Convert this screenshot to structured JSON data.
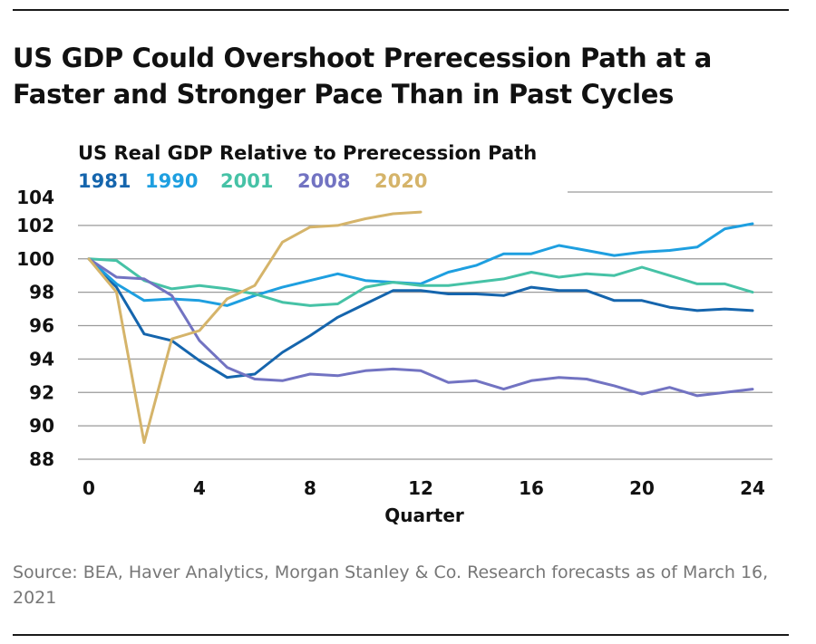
{
  "headline": {
    "line1": "US GDP Could Overshoot Prerecession Path at a",
    "line2": "Faster and Stronger Pace Than in Past Cycles"
  },
  "source": "Source: BEA, Haver Analytics, Morgan Stanley & Co. Research forecasts as of March 16, 2021",
  "chart_data": {
    "type": "line",
    "title": "US Real GDP Relative to Prerecession Path",
    "xlabel": "Quarter",
    "ylabel": "",
    "xlim": [
      0,
      24
    ],
    "ylim": [
      88,
      104
    ],
    "xticks": [
      0,
      4,
      8,
      12,
      16,
      20,
      24
    ],
    "yticks": [
      88,
      90,
      92,
      94,
      96,
      98,
      100,
      102,
      104
    ],
    "grid": "horizontal",
    "legend": "top-left",
    "series": [
      {
        "name": "1981",
        "color": "#1565ad",
        "x": [
          0,
          1,
          2,
          3,
          4,
          5,
          6,
          7,
          8,
          9,
          10,
          11,
          12,
          13,
          14,
          15,
          16,
          17,
          18,
          19,
          20,
          21,
          22,
          23,
          24
        ],
        "values": [
          100,
          98.3,
          95.5,
          95.1,
          93.9,
          92.9,
          93.1,
          94.4,
          95.4,
          96.5,
          97.3,
          98.1,
          98.1,
          97.9,
          97.9,
          97.8,
          98.3,
          98.1,
          98.1,
          97.5,
          97.5,
          97.1,
          96.9,
          97.0,
          96.9
        ]
      },
      {
        "name": "1990",
        "color": "#1e9fe0",
        "x": [
          0,
          1,
          2,
          3,
          4,
          5,
          6,
          7,
          8,
          9,
          10,
          11,
          12,
          13,
          14,
          15,
          16,
          17,
          18,
          19,
          20,
          21,
          22,
          23,
          24
        ],
        "values": [
          100,
          98.5,
          97.5,
          97.6,
          97.5,
          97.2,
          97.8,
          98.3,
          98.7,
          99.1,
          98.7,
          98.6,
          98.5,
          99.2,
          99.6,
          100.3,
          100.3,
          100.8,
          100.5,
          100.2,
          100.4,
          100.5,
          100.7,
          101.8,
          102.1
        ]
      },
      {
        "name": "2001",
        "color": "#46c2a6",
        "x": [
          0,
          1,
          2,
          3,
          4,
          5,
          6,
          7,
          8,
          9,
          10,
          11,
          12,
          13,
          14,
          15,
          16,
          17,
          18,
          19,
          20,
          21,
          22,
          23,
          24
        ],
        "values": [
          100,
          99.9,
          98.7,
          98.2,
          98.4,
          98.2,
          97.9,
          97.4,
          97.2,
          97.3,
          98.3,
          98.6,
          98.4,
          98.4,
          98.6,
          98.8,
          99.2,
          98.9,
          99.1,
          99.0,
          99.5,
          99.0,
          98.5,
          98.5,
          98.0
        ]
      },
      {
        "name": "2008",
        "color": "#7273c2",
        "x": [
          0,
          1,
          2,
          3,
          4,
          5,
          6,
          7,
          8,
          9,
          10,
          11,
          12,
          13,
          14,
          15,
          16,
          17,
          18,
          19,
          20,
          21,
          22,
          23,
          24
        ],
        "values": [
          100,
          98.9,
          98.8,
          97.8,
          95.1,
          93.5,
          92.8,
          92.7,
          93.1,
          93.0,
          93.3,
          93.4,
          93.3,
          92.6,
          92.7,
          92.2,
          92.7,
          92.9,
          92.8,
          92.4,
          91.9,
          92.3,
          91.8,
          92.0,
          92.2
        ]
      },
      {
        "name": "2020",
        "color": "#d5b46a",
        "x": [
          0,
          1,
          2,
          3,
          4,
          5,
          6,
          7,
          8,
          9,
          10,
          11,
          12
        ],
        "values": [
          100,
          98.0,
          89.0,
          95.2,
          95.7,
          97.6,
          98.4,
          101.0,
          101.9,
          102.0,
          102.4,
          102.7,
          102.8
        ]
      }
    ]
  }
}
